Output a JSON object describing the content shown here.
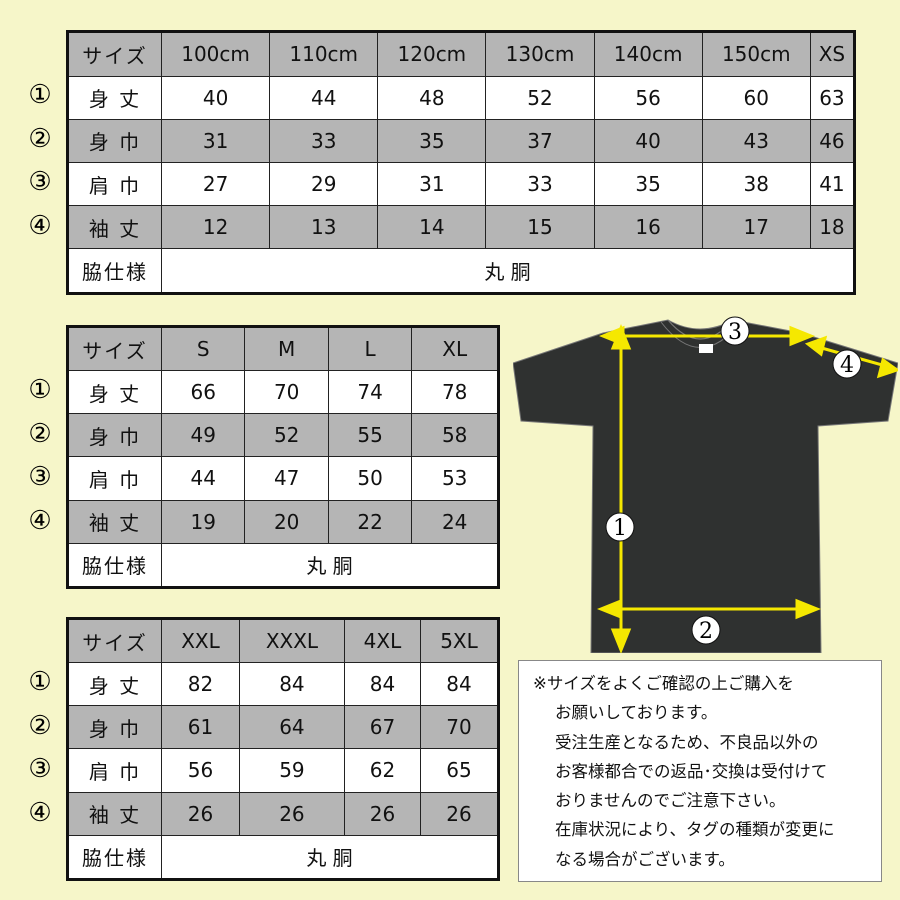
{
  "tables": [
    {
      "header": [
        "サイズ",
        "100cm",
        "110cm",
        "120cm",
        "130cm",
        "140cm",
        "150cm",
        "XS"
      ],
      "rows": [
        {
          "marker": "①",
          "label": "身 丈",
          "values": [
            "40",
            "44",
            "48",
            "52",
            "56",
            "60",
            "63"
          ]
        },
        {
          "marker": "②",
          "label": "身 巾",
          "values": [
            "31",
            "33",
            "35",
            "37",
            "40",
            "43",
            "46"
          ]
        },
        {
          "marker": "③",
          "label": "肩 巾",
          "values": [
            "27",
            "29",
            "31",
            "33",
            "35",
            "38",
            "41"
          ]
        },
        {
          "marker": "④",
          "label": "袖 丈",
          "values": [
            "12",
            "13",
            "14",
            "15",
            "16",
            "17",
            "18"
          ]
        }
      ],
      "footer": {
        "label": "脇仕様",
        "value": "丸 胴"
      }
    },
    {
      "header": [
        "サイズ",
        "S",
        "M",
        "L",
        "XL"
      ],
      "rows": [
        {
          "marker": "①",
          "label": "身 丈",
          "values": [
            "66",
            "70",
            "74",
            "78"
          ]
        },
        {
          "marker": "②",
          "label": "身 巾",
          "values": [
            "49",
            "52",
            "55",
            "58"
          ]
        },
        {
          "marker": "③",
          "label": "肩 巾",
          "values": [
            "44",
            "47",
            "50",
            "53"
          ]
        },
        {
          "marker": "④",
          "label": "袖 丈",
          "values": [
            "19",
            "20",
            "22",
            "24"
          ]
        }
      ],
      "footer": {
        "label": "脇仕様",
        "value": "丸 胴"
      }
    },
    {
      "header": [
        "サイズ",
        "XXL",
        "XXXL",
        "4XL",
        "5XL"
      ],
      "rows": [
        {
          "marker": "①",
          "label": "身 丈",
          "values": [
            "82",
            "84",
            "84",
            "84"
          ]
        },
        {
          "marker": "②",
          "label": "身 巾",
          "values": [
            "61",
            "64",
            "67",
            "70"
          ]
        },
        {
          "marker": "③",
          "label": "肩 巾",
          "values": [
            "56",
            "59",
            "62",
            "65"
          ]
        },
        {
          "marker": "④",
          "label": "袖 丈",
          "values": [
            "26",
            "26",
            "26",
            "26"
          ]
        }
      ],
      "footer": {
        "label": "脇仕様",
        "value": "丸 胴"
      }
    }
  ],
  "diagram": {
    "markers": [
      "1",
      "2",
      "3",
      "4"
    ],
    "shirt_color": "#2f3130",
    "arrow_color": "#f5e800"
  },
  "note": {
    "lines": [
      "※サイズをよくご確認の上ご購入を",
      "お願いしております。",
      "受注生産となるため、不良品以外の",
      "お客様都合での返品･交換は受付けて",
      "おりませんのでご注意下さい。",
      "在庫状況により、タグの種類が変更に",
      "なる場合がございます。"
    ]
  },
  "colors": {
    "background": "#f6f6c9",
    "header_gray": "#b5b5b5"
  }
}
